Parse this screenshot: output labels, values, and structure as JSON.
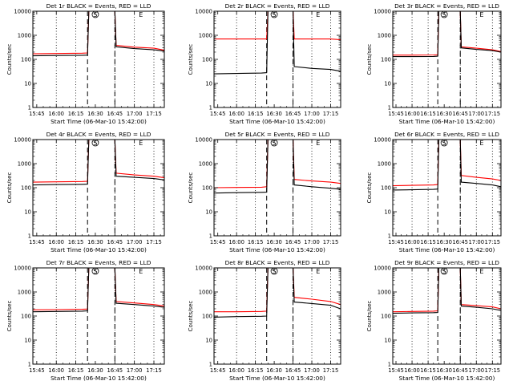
{
  "colors": {
    "events": "#000000",
    "lld": "#ff0000",
    "axes": "#000000",
    "background": "#ffffff"
  },
  "shared": {
    "xlabel": "Start Time (06-Mar-10 15:42:00)",
    "ylabel": "Counts/sec",
    "xticks": [
      "15:45",
      "16:00",
      "16:15",
      "16:30",
      "16:45",
      "17:00",
      "17:15"
    ],
    "yticks": [
      "1",
      "10",
      "100",
      "1000",
      "10000"
    ],
    "ylim": [
      1,
      10000
    ],
    "yscale": "log",
    "time_range": [
      "15:42",
      "17:23"
    ],
    "dotted_verticals": [
      "16:00",
      "16:15",
      "16:45",
      "17:00",
      "17:15"
    ],
    "dashed_verticals": [
      "16:24",
      "16:45"
    ],
    "markers": [
      {
        "symbol": "S",
        "time": "16:30"
      },
      {
        "symbol": "E",
        "time": "17:05"
      }
    ]
  },
  "chart_data": [
    {
      "type": "line",
      "title": "Det 1r BLACK = Events, RED = LLD",
      "xlabel": "Start Time (06-Mar-10 15:42:00)",
      "ylabel": "Counts/sec",
      "ylim": [
        1,
        10000
      ],
      "times": [
        "15:42",
        "16:00",
        "16:20",
        "16:24",
        "16:25",
        "16:30",
        "16:40",
        "16:45",
        "16:46",
        "17:00",
        "17:15",
        "17:23"
      ],
      "series": [
        {
          "name": "Events",
          "values": [
            140,
            145,
            148,
            150,
            10000,
            10000,
            10000,
            10000,
            330,
            280,
            250,
            220
          ]
        },
        {
          "name": "LLD",
          "values": [
            170,
            175,
            180,
            185,
            10000,
            10000,
            10000,
            10000,
            380,
            320,
            290,
            240
          ]
        }
      ]
    },
    {
      "type": "line",
      "title": "Det 2r BLACK = Events, RED = LLD",
      "xlabel": "Start Time (06-Mar-10 15:42:00)",
      "ylabel": "Counts/sec",
      "ylim": [
        1,
        10000
      ],
      "times": [
        "15:42",
        "16:00",
        "16:20",
        "16:24",
        "16:25",
        "16:30",
        "16:40",
        "16:45",
        "16:46",
        "17:00",
        "17:15",
        "17:23"
      ],
      "series": [
        {
          "name": "Events",
          "values": [
            25,
            26,
            27,
            28,
            10000,
            10000,
            10000,
            10000,
            50,
            42,
            38,
            32
          ]
        },
        {
          "name": "LLD",
          "values": [
            700,
            700,
            700,
            700,
            10000,
            10000,
            10000,
            10000,
            700,
            700,
            700,
            650
          ]
        }
      ]
    },
    {
      "type": "line",
      "title": "Det 3r BLACK = Events, RED = LLD",
      "xlabel": "Start Time (06-Mar-10 15:42:00)",
      "ylabel": "Counts/sec",
      "ylim": [
        1,
        10000
      ],
      "times": [
        "15:42",
        "16:00",
        "16:20",
        "16:24",
        "16:25",
        "16:30",
        "16:40",
        "16:45",
        "16:46",
        "17:00",
        "17:15",
        "17:23"
      ],
      "series": [
        {
          "name": "Events",
          "values": [
            130,
            130,
            132,
            135,
            10000,
            10000,
            10000,
            10000,
            300,
            260,
            230,
            200
          ]
        },
        {
          "name": "LLD",
          "values": [
            150,
            150,
            152,
            155,
            10000,
            10000,
            10000,
            10000,
            330,
            290,
            250,
            210
          ]
        }
      ]
    },
    {
      "type": "line",
      "title": "Det 4r BLACK = Events, RED = LLD",
      "xlabel": "Start Time (06-Mar-10 15:42:00)",
      "ylabel": "Counts/sec",
      "ylim": [
        1,
        10000
      ],
      "times": [
        "15:42",
        "16:00",
        "16:20",
        "16:24",
        "16:25",
        "16:30",
        "16:40",
        "16:45",
        "16:46",
        "17:00",
        "17:15",
        "17:23"
      ],
      "series": [
        {
          "name": "Events",
          "values": [
            130,
            135,
            138,
            140,
            10000,
            10000,
            10000,
            10000,
            300,
            270,
            240,
            210
          ]
        },
        {
          "name": "LLD",
          "values": [
            170,
            175,
            180,
            185,
            10000,
            10000,
            10000,
            10000,
            400,
            340,
            300,
            260
          ]
        }
      ]
    },
    {
      "type": "line",
      "title": "Det 5r BLACK = Events, RED = LLD",
      "xlabel": "Start Time (06-Mar-10 15:42:00)",
      "ylabel": "Counts/sec",
      "ylim": [
        1,
        10000
      ],
      "times": [
        "15:42",
        "16:00",
        "16:20",
        "16:24",
        "16:25",
        "16:30",
        "16:40",
        "16:45",
        "16:46",
        "17:00",
        "17:15",
        "17:23"
      ],
      "series": [
        {
          "name": "Events",
          "values": [
            60,
            62,
            64,
            65,
            10000,
            10000,
            10000,
            10000,
            130,
            110,
            95,
            85
          ]
        },
        {
          "name": "LLD",
          "values": [
            100,
            102,
            105,
            110,
            10000,
            10000,
            10000,
            10000,
            220,
            190,
            170,
            150
          ]
        }
      ]
    },
    {
      "type": "line",
      "title": "Det 6r BLACK = Events, RED = LLD",
      "xlabel": "Start Time (06-Mar-10 15:42:00)",
      "ylabel": "Counts/sec",
      "ylim": [
        1,
        10000
      ],
      "times": [
        "15:42",
        "16:00",
        "16:20",
        "16:24",
        "16:25",
        "16:30",
        "16:40",
        "16:45",
        "16:46",
        "17:00",
        "17:15",
        "17:23"
      ],
      "series": [
        {
          "name": "Events",
          "values": [
            80,
            82,
            85,
            88,
            10000,
            10000,
            10000,
            10000,
            170,
            150,
            130,
            110
          ]
        },
        {
          "name": "LLD",
          "values": [
            120,
            125,
            130,
            135,
            10000,
            10000,
            10000,
            10000,
            320,
            270,
            230,
            200
          ]
        }
      ]
    },
    {
      "type": "line",
      "title": "Det 7r BLACK = Events, RED = LLD",
      "xlabel": "Start Time (06-Mar-10 15:42:00)",
      "ylabel": "Counts/sec",
      "ylim": [
        1,
        10000
      ],
      "times": [
        "15:42",
        "16:00",
        "16:20",
        "16:24",
        "16:25",
        "16:30",
        "16:40",
        "16:45",
        "16:46",
        "17:00",
        "17:15",
        "17:23"
      ],
      "series": [
        {
          "name": "Events",
          "values": [
            150,
            155,
            160,
            165,
            10000,
            10000,
            10000,
            10000,
            340,
            300,
            260,
            230
          ]
        },
        {
          "name": "LLD",
          "values": [
            180,
            185,
            190,
            195,
            10000,
            10000,
            10000,
            10000,
            400,
            350,
            300,
            260
          ]
        }
      ]
    },
    {
      "type": "line",
      "title": "Det 8r BLACK = Events, RED = LLD",
      "xlabel": "Start Time (06-Mar-10 15:42:00)",
      "ylabel": "Counts/sec",
      "ylim": [
        1,
        10000
      ],
      "times": [
        "15:42",
        "16:00",
        "16:20",
        "16:24",
        "16:25",
        "16:30",
        "16:40",
        "16:45",
        "16:46",
        "17:00",
        "17:15",
        "17:23"
      ],
      "series": [
        {
          "name": "Events",
          "values": [
            90,
            95,
            98,
            100,
            10000,
            10000,
            10000,
            10000,
            380,
            330,
            280,
            200
          ]
        },
        {
          "name": "LLD",
          "values": [
            150,
            150,
            155,
            160,
            10000,
            10000,
            10000,
            10000,
            600,
            500,
            400,
            300
          ]
        }
      ]
    },
    {
      "type": "line",
      "title": "Det 9r BLACK = Events, RED = LLD",
      "xlabel": "Start Time (06-Mar-10 15:42:00)",
      "ylabel": "Counts/sec",
      "ylim": [
        1,
        10000
      ],
      "times": [
        "15:42",
        "16:00",
        "16:20",
        "16:24",
        "16:25",
        "16:30",
        "16:40",
        "16:45",
        "16:46",
        "17:00",
        "17:15",
        "17:23"
      ],
      "series": [
        {
          "name": "Events",
          "values": [
            130,
            135,
            138,
            140,
            10000,
            10000,
            10000,
            10000,
            260,
            230,
            200,
            170
          ]
        },
        {
          "name": "LLD",
          "values": [
            150,
            155,
            160,
            165,
            10000,
            10000,
            10000,
            10000,
            300,
            270,
            240,
            200
          ]
        }
      ]
    }
  ]
}
